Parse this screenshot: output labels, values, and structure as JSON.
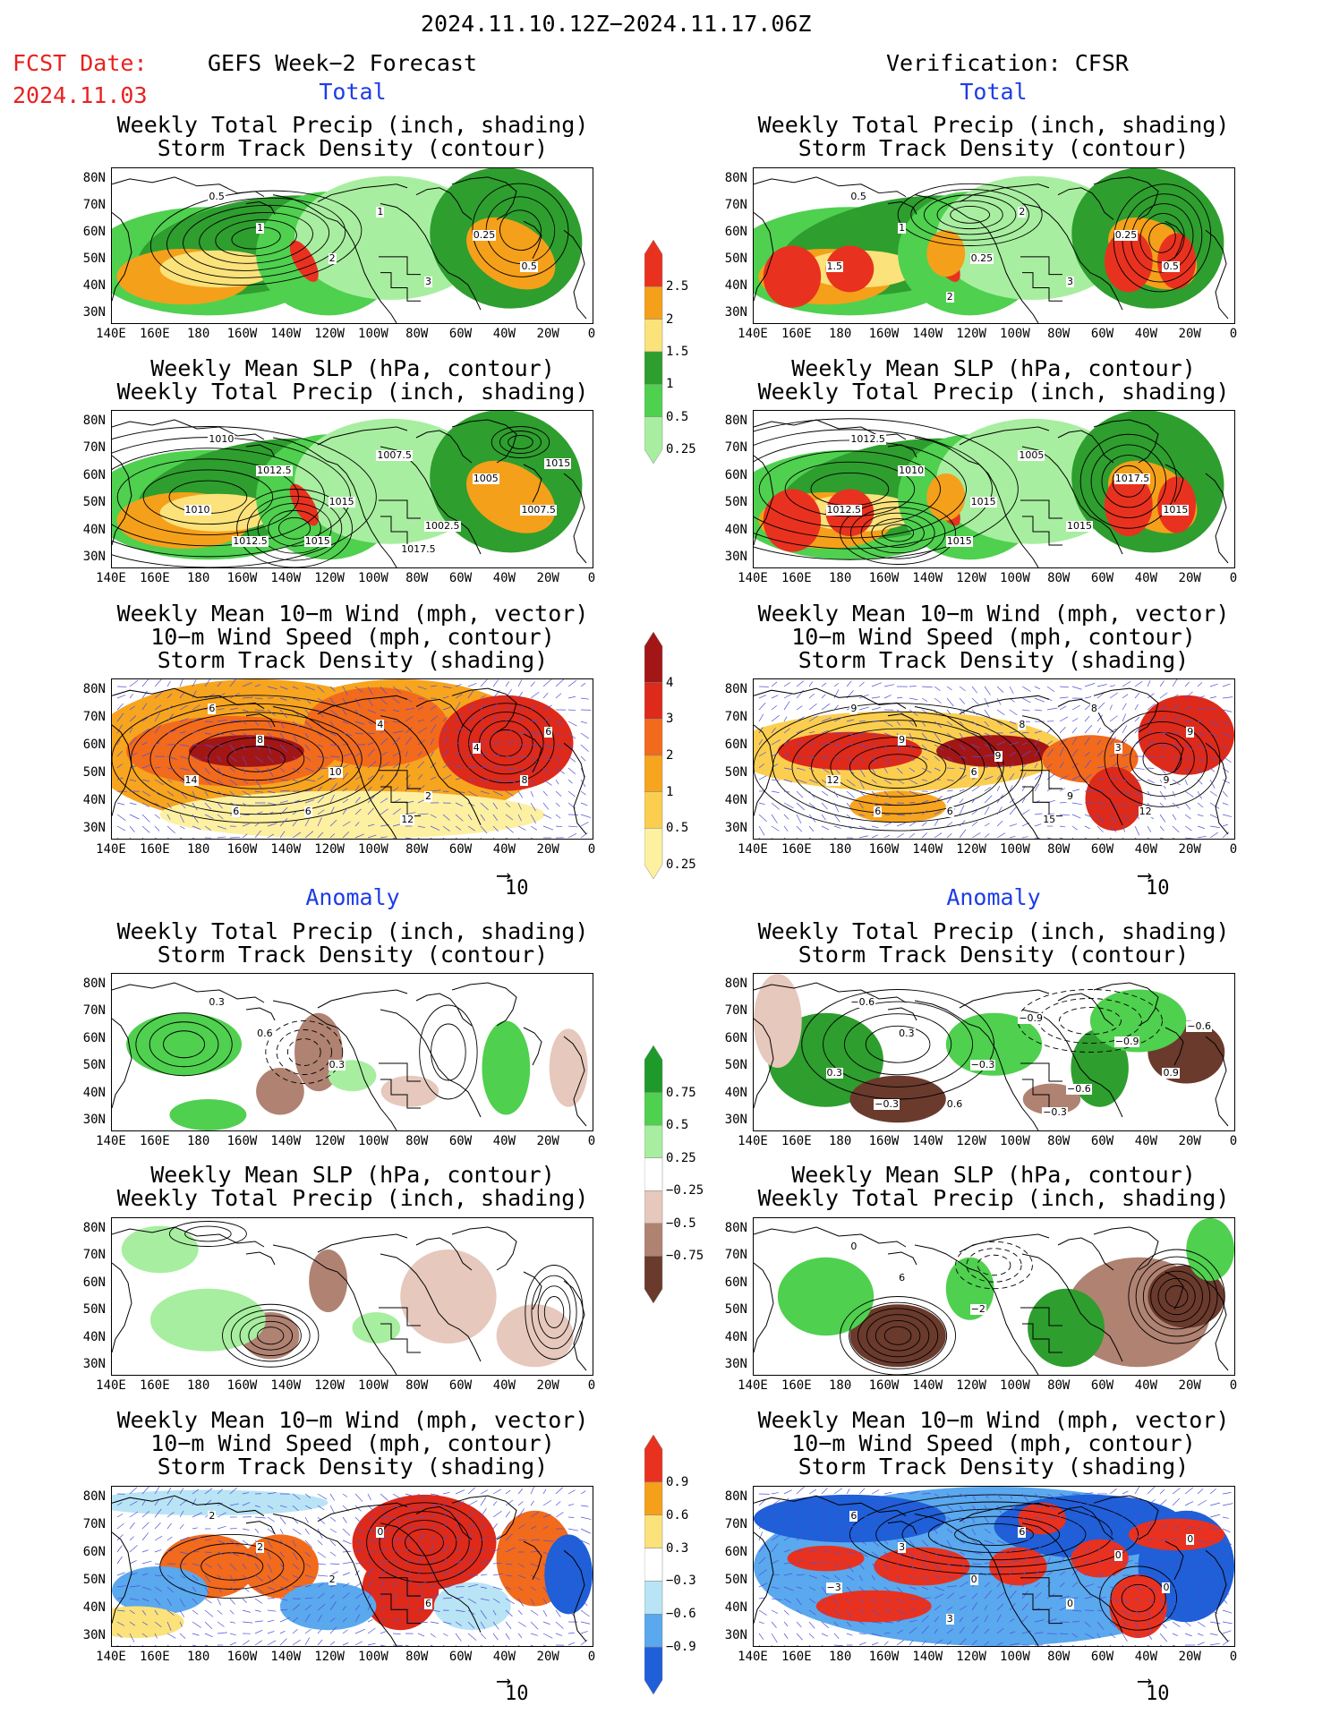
{
  "header": {
    "period": "2024.11.10.12Z−2024.11.17.06Z",
    "fcst_date_label": "FCST Date:",
    "fcst_date_value": "2024.11.03",
    "left_title": "GEFS Week−2 Forecast",
    "right_title": "Verification: CFSR"
  },
  "sections": {
    "total": "Total",
    "anomaly": "Anomaly"
  },
  "panel_titles": {
    "precip_track": [
      "Weekly Total Precip (inch, shading)",
      "Storm Track Density (contour)"
    ],
    "slp_precip": [
      "Weekly Mean SLP (hPa, contour)",
      "Weekly Total Precip (inch, shading)"
    ],
    "wind_track": [
      "Weekly Mean 10−m Wind (mph, vector)",
      "10−m Wind Speed (mph, contour)",
      "Storm Track Density (shading)"
    ]
  },
  "axes": {
    "lat": [
      "80N",
      "70N",
      "60N",
      "50N",
      "40N",
      "30N"
    ],
    "lon": [
      "140E",
      "160E",
      "180",
      "160W",
      "140W",
      "120W",
      "100W",
      "80W",
      "60W",
      "40W",
      "20W",
      "0"
    ]
  },
  "vector_reference": "10",
  "colorbars": {
    "precip_total": {
      "labels": [
        "2.5",
        "2",
        "1.5",
        "1",
        "0.5",
        "0.25"
      ],
      "colors": [
        "#e8321f",
        "#f5a01a",
        "#fbe27a",
        "#2e9e2e",
        "#4fd04f",
        "#a8eea0"
      ]
    },
    "track_total": {
      "labels": [
        "4",
        "3",
        "2",
        "1",
        "0.5",
        "0.25"
      ],
      "colors": [
        "#a31616",
        "#dd2a1a",
        "#f26a1c",
        "#f7a41e",
        "#fbce50",
        "#fdf0a0"
      ]
    },
    "precip_anom": {
      "labels": [
        "0.75",
        "0.5",
        "0.25",
        "−0.25",
        "−0.5",
        "−0.75"
      ],
      "colors": [
        "#1e9a2a",
        "#4fd04f",
        "#a8eea0",
        "#ffffff",
        "#e6c8bc",
        "#b08272",
        "#6a3a2c"
      ]
    },
    "track_anom": {
      "labels": [
        "0.9",
        "0.6",
        "0.3",
        "−0.3",
        "−0.6",
        "−0.9"
      ],
      "colors": [
        "#e8321f",
        "#f5a01a",
        "#fbe27a",
        "#ffffff",
        "#b8e4f5",
        "#5aa8ee",
        "#1f5fd8"
      ]
    }
  },
  "map_labels": {
    "L1": [
      "0.5",
      "1",
      "2",
      "1",
      "3",
      "0.25",
      "0.5"
    ],
    "R1": [
      "0.5",
      "1",
      "0.25",
      "2",
      "3",
      "0.25",
      "0.5",
      "1.5",
      "2"
    ],
    "L2": [
      "1010",
      "1012.5",
      "1015",
      "1007.5",
      "1002.5",
      "1005",
      "1007.5",
      "1010",
      "1015",
      "1015",
      "1017.5",
      "1012.5"
    ],
    "R2": [
      "1012.5",
      "1010",
      "1015",
      "1005",
      "1015",
      "1017.5",
      "1015",
      "1012.5",
      "1015"
    ],
    "L3": [
      "6",
      "8",
      "10",
      "4",
      "2",
      "4",
      "8",
      "14",
      "6",
      "6",
      "12",
      "6"
    ],
    "R3": [
      "9",
      "9",
      "6",
      "8",
      "9",
      "3",
      "9",
      "12",
      "6",
      "9",
      "15",
      "6",
      "8",
      "9",
      "12"
    ],
    "L4": [
      "0.3",
      "0.6",
      "0.3"
    ],
    "R4": [
      "−0.6",
      "0.3",
      "−0.3",
      "−0.9",
      "−0.6",
      "−0.9",
      "0.9",
      "0.3",
      "0.6",
      "−0.6",
      "−0.3",
      "−0.3"
    ],
    "R5": [
      "0",
      "6",
      "−2"
    ],
    "L6": [
      "2",
      "2",
      "2",
      "0",
      "6"
    ],
    "R6": [
      "6",
      "3",
      "0",
      "6",
      "0",
      "0",
      "0",
      "−3",
      "3",
      "0"
    ]
  },
  "colors": {
    "red_text": "#e8221f",
    "blue_text": "#1e3ce6"
  }
}
